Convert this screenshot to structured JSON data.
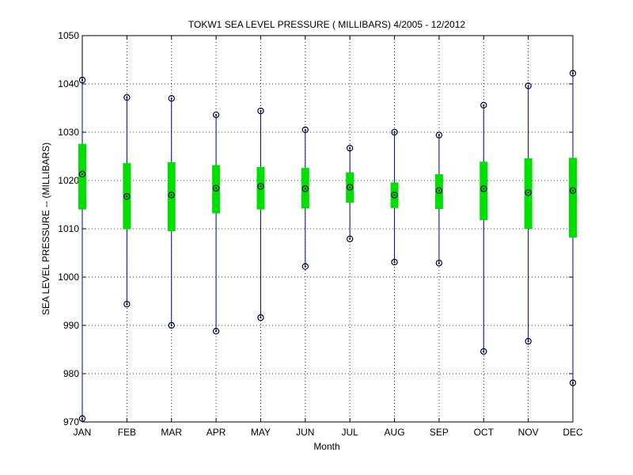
{
  "chart_data": {
    "type": "range_bar",
    "title": "TOKW1  SEA LEVEL PRESSURE ( MILLIBARS) 4/2005 - 12/2012",
    "xlabel": "Month",
    "ylabel": "SEA LEVEL PRESSURE -- (MILLIBARS)",
    "ylim": [
      970,
      1050
    ],
    "yticks": [
      970,
      980,
      990,
      1000,
      1010,
      1020,
      1030,
      1040,
      1050
    ],
    "grid": true,
    "categories": [
      "JAN",
      "FEB",
      "MAR",
      "APR",
      "MAY",
      "JUN",
      "JUL",
      "AUG",
      "SEP",
      "OCT",
      "NOV",
      "DEC"
    ],
    "max": [
      1040.8,
      1037.2,
      1037.0,
      1033.6,
      1034.4,
      1030.5,
      1026.7,
      1030.0,
      1029.4,
      1035.6,
      1039.6,
      1042.2
    ],
    "mean": [
      1021.3,
      1016.7,
      1017.0,
      1018.4,
      1018.8,
      1018.3,
      1018.6,
      1017.0,
      1017.9,
      1018.3,
      1017.5,
      1017.9
    ],
    "min": [
      970.7,
      994.4,
      990.0,
      988.8,
      991.6,
      1002.2,
      1007.9,
      1003.1,
      1002.9,
      984.6,
      986.7,
      978.1
    ],
    "band_top": [
      1027.6,
      1023.6,
      1023.8,
      1023.2,
      1022.8,
      1022.6,
      1021.7,
      1019.6,
      1021.3,
      1023.9,
      1024.6,
      1024.7
    ],
    "band_bottom": [
      1014.0,
      1009.9,
      1009.5,
      1013.2,
      1014.0,
      1014.2,
      1015.4,
      1014.3,
      1014.1,
      1011.8,
      1010.0,
      1008.2
    ],
    "colors": {
      "range_line": "#0000a0",
      "band": "#00e000",
      "marker": "#000040",
      "grid": "#000000"
    }
  }
}
